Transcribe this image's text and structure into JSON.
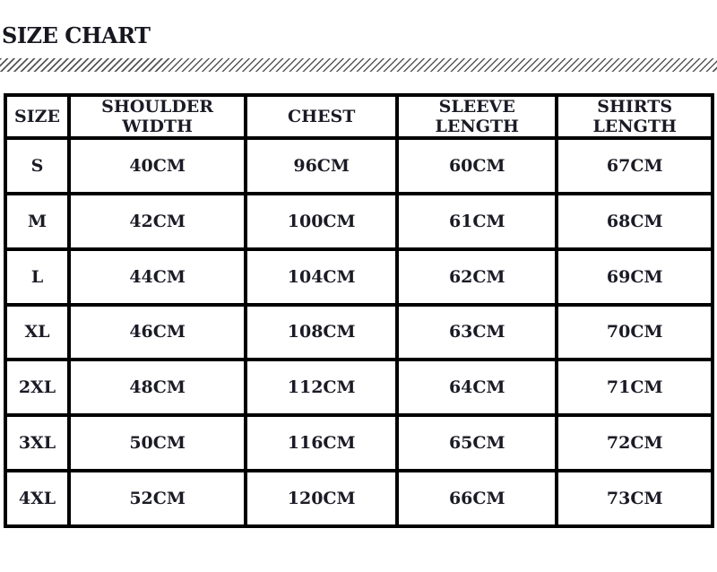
{
  "title": "SIZE CHART",
  "table": {
    "columns": [
      "SIZE",
      "SHOULDER WIDTH",
      "CHEST",
      "SLEEVE LENGTH",
      "SHIRTS LENGTH"
    ],
    "rows": [
      {
        "size": "S",
        "shoulder_width": "40CM",
        "chest": "96CM",
        "sleeve_length": "60CM",
        "shirts_length": "67CM"
      },
      {
        "size": "M",
        "shoulder_width": "42CM",
        "chest": "100CM",
        "sleeve_length": "61CM",
        "shirts_length": "68CM"
      },
      {
        "size": "L",
        "shoulder_width": "44CM",
        "chest": "104CM",
        "sleeve_length": "62CM",
        "shirts_length": "69CM"
      },
      {
        "size": "XL",
        "shoulder_width": "46CM",
        "chest": "108CM",
        "sleeve_length": "63CM",
        "shirts_length": "70CM"
      },
      {
        "size": "2XL",
        "shoulder_width": "48CM",
        "chest": "112CM",
        "sleeve_length": "64CM",
        "shirts_length": "71CM"
      },
      {
        "size": "3XL",
        "shoulder_width": "50CM",
        "chest": "116CM",
        "sleeve_length": "65CM",
        "shirts_length": "72CM"
      },
      {
        "size": "4XL",
        "shoulder_width": "52CM",
        "chest": "120CM",
        "sleeve_length": "66CM",
        "shirts_length": "73CM"
      }
    ]
  },
  "colors": {
    "text": "#1b1b26",
    "border": "#000000",
    "hatch_stroke": "#565656",
    "background": "#ffffff"
  }
}
